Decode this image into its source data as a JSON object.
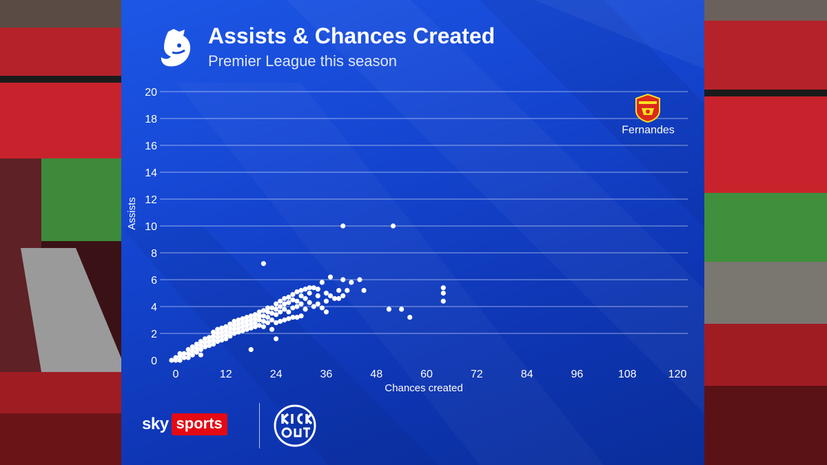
{
  "header": {
    "title": "Assists & Chances Created",
    "subtitle": "Premier League this season"
  },
  "footer": {
    "broadcaster_word": "sky",
    "broadcaster_box": "sports",
    "partner_logo_text": "KICK IT OUT"
  },
  "colors": {
    "panel_blue": "#1546d2",
    "point": "#ffffff",
    "sports_red": "#e50914",
    "crest_red": "#da291c",
    "crest_gold": "#fbe122"
  },
  "icons": [
    "premier-league-lion-icon",
    "manchester-united-crest-icon",
    "sky-sports-logo",
    "kick-it-out-logo"
  ],
  "chart_data": {
    "type": "scatter",
    "title": "Assists & Chances Created",
    "subtitle": "Premier League this season",
    "xlabel": "Chances created",
    "ylabel": "Assists",
    "xlim": [
      -2,
      122
    ],
    "ylim": [
      0,
      20
    ],
    "xticks": [
      0,
      12,
      24,
      36,
      48,
      60,
      72,
      84,
      96,
      108,
      120
    ],
    "yticks": [
      0,
      2,
      4,
      6,
      8,
      10,
      12,
      14,
      16,
      18,
      20
    ],
    "grid": "horizontal",
    "annotations": [
      {
        "text": "Fernandes",
        "x": 113,
        "y": 17.2
      }
    ],
    "points": [
      [
        -1,
        0
      ],
      [
        0,
        0
      ],
      [
        0,
        0.2
      ],
      [
        1,
        0
      ],
      [
        1,
        0.3
      ],
      [
        1,
        0.5
      ],
      [
        2,
        0.2
      ],
      [
        2,
        0.5
      ],
      [
        3,
        0.2
      ],
      [
        3,
        0.5
      ],
      [
        3,
        0.8
      ],
      [
        4,
        0.4
      ],
      [
        4,
        0.7
      ],
      [
        4,
        1
      ],
      [
        5,
        0.6
      ],
      [
        5,
        0.9
      ],
      [
        5,
        1.2
      ],
      [
        6,
        0.4
      ],
      [
        6,
        0.8
      ],
      [
        6,
        1.1
      ],
      [
        6,
        1.4
      ],
      [
        7,
        1.0
      ],
      [
        7,
        1.3
      ],
      [
        7,
        1.6
      ],
      [
        8,
        1.1
      ],
      [
        8,
        1.4
      ],
      [
        8,
        1.7
      ],
      [
        9,
        1.2
      ],
      [
        9,
        1.5
      ],
      [
        9,
        1.8
      ],
      [
        9,
        2.1
      ],
      [
        10,
        1.4
      ],
      [
        10,
        1.7
      ],
      [
        10,
        2.0
      ],
      [
        10,
        2.3
      ],
      [
        11,
        1.5
      ],
      [
        11,
        1.8
      ],
      [
        11,
        2.1
      ],
      [
        11,
        2.4
      ],
      [
        12,
        1.6
      ],
      [
        12,
        1.9
      ],
      [
        12,
        2.2
      ],
      [
        12,
        2.5
      ],
      [
        13,
        1.8
      ],
      [
        13,
        2.1
      ],
      [
        13,
        2.4
      ],
      [
        13,
        2.7
      ],
      [
        14,
        2.0
      ],
      [
        14,
        2.3
      ],
      [
        14,
        2.6
      ],
      [
        14,
        2.9
      ],
      [
        15,
        2.1
      ],
      [
        15,
        2.4
      ],
      [
        15,
        2.7
      ],
      [
        15,
        3.0
      ],
      [
        16,
        2.2
      ],
      [
        16,
        2.5
      ],
      [
        16,
        2.8
      ],
      [
        16,
        3.1
      ],
      [
        17,
        2.3
      ],
      [
        17,
        2.6
      ],
      [
        17,
        2.9
      ],
      [
        17,
        3.2
      ],
      [
        18,
        2.4
      ],
      [
        18,
        2.7
      ],
      [
        18,
        3.0
      ],
      [
        18,
        3.3
      ],
      [
        18,
        0.8
      ],
      [
        19,
        2.5
      ],
      [
        19,
        2.8
      ],
      [
        19,
        3.1
      ],
      [
        19,
        3.4
      ],
      [
        20,
        2.6
      ],
      [
        20,
        3.0
      ],
      [
        20,
        3.3
      ],
      [
        20,
        3.6
      ],
      [
        21,
        2.5
      ],
      [
        21,
        2.9
      ],
      [
        21,
        3.3
      ],
      [
        21,
        3.7
      ],
      [
        21,
        7.2
      ],
      [
        22,
        2.8
      ],
      [
        22,
        3.2
      ],
      [
        22,
        3.6
      ],
      [
        22,
        3.9
      ],
      [
        23,
        2.3
      ],
      [
        23,
        3.0
      ],
      [
        23,
        3.5
      ],
      [
        23,
        3.9
      ],
      [
        24,
        1.6
      ],
      [
        24,
        2.8
      ],
      [
        24,
        3.4
      ],
      [
        24,
        3.8
      ],
      [
        24,
        4.2
      ],
      [
        25,
        2.9
      ],
      [
        25,
        3.6
      ],
      [
        25,
        4.0
      ],
      [
        25,
        4.4
      ],
      [
        26,
        3.0
      ],
      [
        26,
        3.8
      ],
      [
        26,
        4.2
      ],
      [
        26,
        4.6
      ],
      [
        27,
        3.1
      ],
      [
        27,
        3.6
      ],
      [
        27,
        4.3
      ],
      [
        27,
        4.7
      ],
      [
        28,
        3.2
      ],
      [
        28,
        3.9
      ],
      [
        28,
        4.5
      ],
      [
        28,
        4.9
      ],
      [
        29,
        3.2
      ],
      [
        29,
        4.0
      ],
      [
        29,
        4.4
      ],
      [
        29,
        5.1
      ],
      [
        30,
        3.3
      ],
      [
        30,
        4.2
      ],
      [
        30,
        4.8
      ],
      [
        30,
        5.2
      ],
      [
        31,
        3.8
      ],
      [
        31,
        4.6
      ],
      [
        31,
        5.3
      ],
      [
        32,
        4.3
      ],
      [
        32,
        5.0
      ],
      [
        32,
        5.4
      ],
      [
        33,
        4.0
      ],
      [
        33,
        5.4
      ],
      [
        34,
        4.2
      ],
      [
        34,
        4.8
      ],
      [
        34,
        5.3
      ],
      [
        35,
        3.9
      ],
      [
        35,
        5.8
      ],
      [
        36,
        3.6
      ],
      [
        36,
        4.4
      ],
      [
        36,
        5.0
      ],
      [
        37,
        4.8
      ],
      [
        37,
        6.2
      ],
      [
        38,
        4.6
      ],
      [
        39,
        4.6
      ],
      [
        39,
        5.2
      ],
      [
        40,
        4.8
      ],
      [
        40,
        6.0
      ],
      [
        40,
        10.0
      ],
      [
        41,
        5.2
      ],
      [
        42,
        5.8
      ],
      [
        44,
        6.0
      ],
      [
        45,
        5.2
      ],
      [
        51,
        3.8
      ],
      [
        52,
        10.0
      ],
      [
        54,
        3.8
      ],
      [
        56,
        3.2
      ],
      [
        64,
        4.4
      ],
      [
        64,
        5.0
      ],
      [
        64,
        5.4
      ]
    ]
  }
}
